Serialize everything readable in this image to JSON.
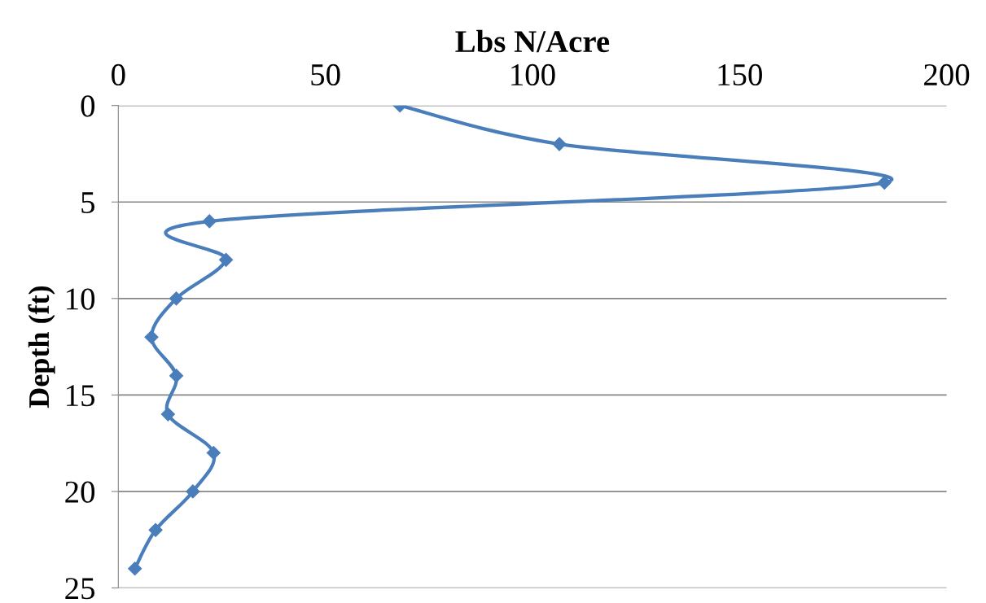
{
  "chart_data": {
    "type": "line",
    "xlabel": "Lbs N/Acre",
    "ylabel": "Depth (ft)",
    "xlim": [
      0,
      200
    ],
    "xticks": [
      0,
      50,
      100,
      150,
      200
    ],
    "ylim": [
      25,
      0
    ],
    "yticks": [
      0,
      5,
      10,
      15,
      20,
      25
    ],
    "grid": "y",
    "marker": "diamond",
    "line_style": "solid",
    "series": [
      {
        "color": "#4a7ebb",
        "x": [
          68,
          106.5,
          185,
          22,
          26,
          14,
          8,
          14,
          12,
          23,
          18,
          9,
          4
        ],
        "values": [
          0,
          2,
          4,
          6,
          8,
          10,
          12,
          14,
          16,
          18,
          20,
          22,
          24
        ]
      }
    ]
  }
}
